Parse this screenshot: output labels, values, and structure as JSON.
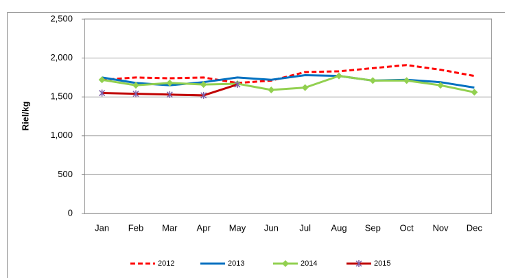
{
  "chart_data": {
    "type": "line",
    "y_label": "Riel/kg",
    "categories": [
      "Jan",
      "Feb",
      "Mar",
      "Apr",
      "May",
      "Jun",
      "Jul",
      "Aug",
      "Sep",
      "Oct",
      "Nov",
      "Dec"
    ],
    "ylim": [
      0,
      2500
    ],
    "yticks": [
      0,
      {
        "value": 500,
        "label": "500"
      },
      {
        "value": 1000,
        "label": "1,000"
      },
      {
        "value": 1500,
        "label": "1,500"
      },
      {
        "value": 2000,
        "label": "2,000"
      },
      {
        "value": 2500,
        "label": "2,500"
      }
    ],
    "grid": true,
    "legend": "bottom",
    "series": [
      {
        "name": "2012",
        "color": "#ff0000",
        "dash": "dashed",
        "marker": "none",
        "values": [
          1720,
          1750,
          1740,
          1750,
          1680,
          1710,
          1820,
          1830,
          1870,
          1910,
          1850,
          1770
        ]
      },
      {
        "name": "2013",
        "color": "#0070c0",
        "dash": "solid",
        "marker": "none",
        "values": [
          1750,
          1680,
          1650,
          1690,
          1750,
          1720,
          1780,
          1770,
          1710,
          1720,
          1690,
          1620
        ]
      },
      {
        "name": "2014",
        "color": "#92d050",
        "dash": "solid",
        "marker": "diamond",
        "values": [
          1720,
          1650,
          1680,
          1660,
          1670,
          1590,
          1620,
          1770,
          1710,
          1710,
          1650,
          1560
        ]
      },
      {
        "name": "2015",
        "color": "#c00000",
        "dash": "solid",
        "marker": "star",
        "marker_color": "#7f5fa8",
        "values": [
          1550,
          1540,
          1530,
          1520,
          1660,
          null,
          null,
          null,
          null,
          null,
          null,
          null
        ]
      }
    ]
  }
}
